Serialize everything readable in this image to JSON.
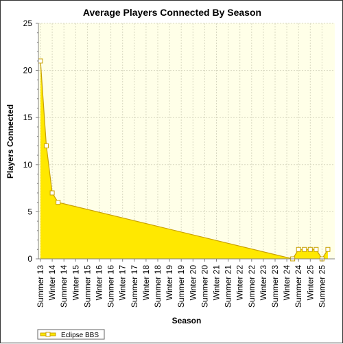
{
  "chart_data": {
    "type": "area",
    "title": "Average Players Connected By Season",
    "xlabel": "Season",
    "ylabel": "Players Connected",
    "ylim": [
      0,
      25
    ],
    "yticks": [
      0,
      5,
      10,
      15,
      20,
      25
    ],
    "categories": [
      "Summer 13",
      "Winter 14",
      "Summer 14",
      "Winter 15",
      "Summer 15",
      "Winter 16",
      "Summer 16",
      "Winter 17",
      "Summer 17",
      "Winter 18",
      "Summer 18",
      "Winter 19",
      "Summer 19",
      "Winter 20",
      "Summer 20",
      "Winter 21",
      "Summer 21",
      "Winter 22",
      "Summer 22",
      "Winter 23",
      "Summer 23",
      "Winter 24",
      "Summer 24",
      "Winter 25",
      "Summer 25"
    ],
    "series": [
      {
        "name": "Eclipse BBS",
        "color": "#ffe800",
        "line_color": "#c8a000",
        "points": [
          {
            "pos": 0.0,
            "value": 21
          },
          {
            "pos": 0.5,
            "value": 12
          },
          {
            "pos": 1.0,
            "value": 7
          },
          {
            "pos": 1.5,
            "value": 6
          },
          {
            "pos": 21.5,
            "value": 0
          },
          {
            "pos": 22.0,
            "value": 1
          },
          {
            "pos": 22.5,
            "value": 1
          },
          {
            "pos": 23.0,
            "value": 1
          },
          {
            "pos": 23.5,
            "value": 1
          },
          {
            "pos": 24.0,
            "value": 0
          },
          {
            "pos": 24.5,
            "value": 1
          }
        ]
      }
    ],
    "plot_background": "#ffffe8",
    "grid": true,
    "legend_position": "bottom-left"
  }
}
